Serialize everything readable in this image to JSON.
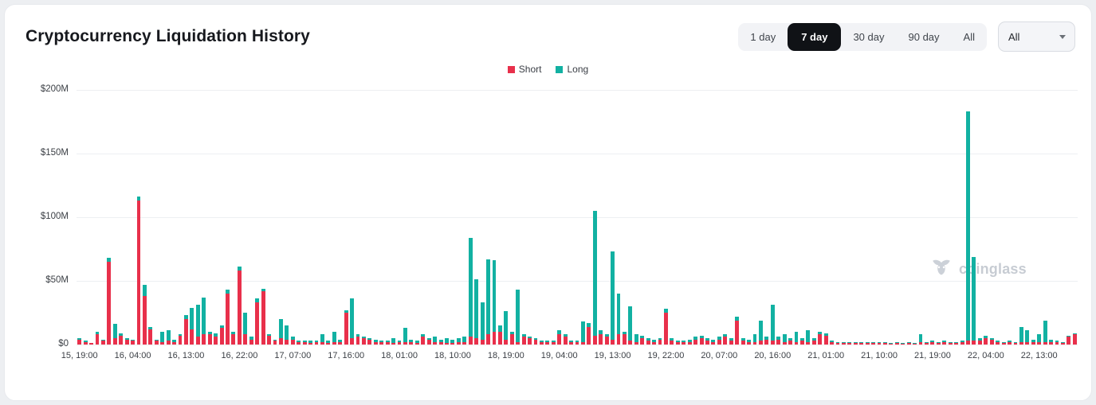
{
  "header": {
    "title": "Cryptocurrency Liquidation History",
    "range_buttons": [
      {
        "label": "1 day",
        "selected": false
      },
      {
        "label": "7 day",
        "selected": true
      },
      {
        "label": "30 day",
        "selected": false
      },
      {
        "label": "90 day",
        "selected": false
      },
      {
        "label": "All",
        "selected": false
      }
    ],
    "symbol_select": {
      "value": "All"
    }
  },
  "legend": [
    {
      "label": "Short",
      "color": "#e8304b"
    },
    {
      "label": "Long",
      "color": "#12b1a2"
    }
  ],
  "watermark": "coinglass",
  "chart_data": {
    "type": "bar",
    "stacked": true,
    "title": "Cryptocurrency Liquidation History",
    "unit": "USD millions",
    "ylim": [
      0,
      200
    ],
    "y_ticks": [
      "$200M",
      "$150M",
      "$100M",
      "$50M",
      "$0"
    ],
    "x_tick_every": 9,
    "x_tick_labels": [
      "15, 19:00",
      "16, 04:00",
      "16, 13:00",
      "16, 22:00",
      "17, 07:00",
      "17, 16:00",
      "18, 01:00",
      "18, 10:00",
      "18, 19:00",
      "19, 04:00",
      "19, 13:00",
      "19, 22:00",
      "20, 07:00",
      "20, 16:00",
      "21, 01:00",
      "21, 10:00",
      "21, 19:00",
      "22, 04:00",
      "22, 13:00"
    ],
    "legend_position": "top-center",
    "grid": "horizontal",
    "series": [
      {
        "name": "Short",
        "color": "#e8304b",
        "values": [
          4,
          2,
          1,
          8,
          3,
          65,
          5,
          7,
          4,
          3,
          113,
          38,
          12,
          3,
          2,
          3,
          2,
          7,
          20,
          12,
          6,
          8,
          8,
          6,
          13,
          40,
          8,
          58,
          8,
          4,
          33,
          42,
          7,
          3,
          5,
          4,
          4,
          2,
          2,
          1,
          2,
          2,
          1,
          2,
          2,
          25,
          5,
          6,
          5,
          4,
          2,
          2,
          2,
          1,
          2,
          2,
          2,
          1,
          6,
          4,
          2,
          2,
          1,
          1,
          2,
          2,
          6,
          5,
          4,
          8,
          10,
          10,
          4,
          8,
          2,
          6,
          5,
          4,
          2,
          2,
          2,
          8,
          6,
          2,
          2,
          2,
          14,
          7,
          8,
          6,
          4,
          8,
          8,
          3,
          2,
          5,
          3,
          2,
          4,
          25,
          3,
          2,
          2,
          2,
          4,
          5,
          3,
          2,
          4,
          6,
          3,
          19,
          3,
          2,
          2,
          3,
          4,
          3,
          4,
          2,
          3,
          2,
          3,
          2,
          3,
          8,
          7,
          2,
          1,
          1,
          1,
          1,
          1,
          1,
          1,
          1,
          1,
          0.5,
          1,
          0.5,
          1,
          0.5,
          2,
          1,
          2,
          1,
          2,
          1,
          1,
          2,
          3,
          3,
          3,
          5,
          4,
          2,
          1,
          2,
          1,
          2,
          2,
          2,
          2,
          2,
          2,
          2,
          1,
          6,
          8
        ]
      },
      {
        "name": "Long",
        "color": "#12b1a2",
        "values": [
          1,
          1,
          0.5,
          2,
          1,
          3,
          11,
          2,
          1,
          1,
          3,
          9,
          2,
          1,
          8,
          8,
          2,
          1,
          3,
          17,
          25,
          29,
          2,
          3,
          2,
          3,
          2,
          3,
          17,
          2,
          3,
          2,
          1,
          1,
          15,
          11,
          2,
          1,
          1,
          2,
          1,
          6,
          2,
          8,
          2,
          2,
          31,
          2,
          1,
          1,
          2,
          1,
          1,
          4,
          1,
          11,
          2,
          2,
          2,
          1,
          4,
          2,
          4,
          3,
          3,
          4,
          78,
          46,
          29,
          59,
          56,
          5,
          22,
          2,
          41,
          2,
          1,
          1,
          1,
          1,
          1,
          3,
          2,
          1,
          1,
          16,
          3,
          98,
          3,
          2,
          69,
          32,
          2,
          27,
          6,
          2,
          2,
          2,
          1,
          3,
          2,
          1,
          1,
          2,
          2,
          2,
          2,
          2,
          2,
          2,
          2,
          3,
          2,
          2,
          6,
          16,
          2,
          28,
          2,
          6,
          2,
          8,
          2,
          9,
          2,
          2,
          2,
          1,
          1,
          1,
          1,
          1,
          1,
          1,
          1,
          1,
          1,
          0.5,
          1,
          0.5,
          1,
          0.5,
          6,
          1,
          1,
          1,
          1,
          1,
          1,
          1,
          180,
          66,
          2,
          2,
          1,
          1,
          1,
          1,
          1,
          12,
          9,
          2,
          6,
          17,
          2,
          1,
          1,
          1,
          1
        ]
      }
    ]
  }
}
